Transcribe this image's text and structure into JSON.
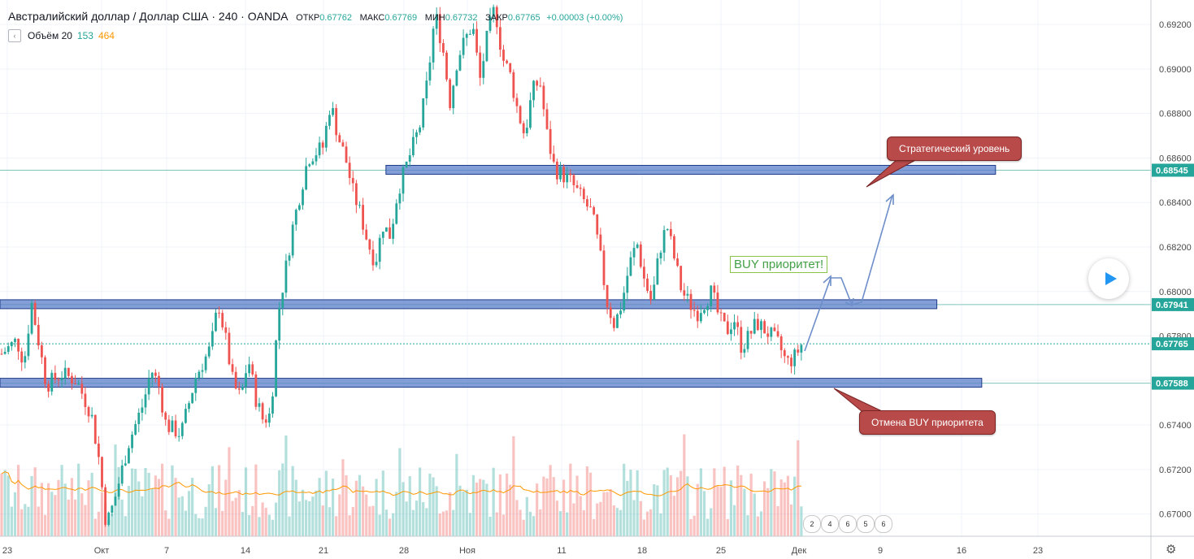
{
  "header": {
    "symbol": "Австралийский доллар / Доллар США · 240 · OANDA",
    "open_label": "ОТКР",
    "open": "0.67762",
    "high_label": "МАКС",
    "high": "0.67769",
    "low_label": "МИН",
    "low": "0.67732",
    "close_label": "ЗАКР",
    "close": "0.67765",
    "change": "+0.00003 (+0.00%)"
  },
  "volume_legend": {
    "label": "Объём 20",
    "value1": "153",
    "value2": "464"
  },
  "annotations": {
    "strategic_level": "Стратегический уровень",
    "cancel_buy": "Отмена BUY приоритета",
    "buy_priority": "BUY приоритет!"
  },
  "events": [
    "2",
    "4",
    "6",
    "5",
    "6"
  ],
  "colors": {
    "up": "#26a69a",
    "down": "#ef5350",
    "zone": "#5b7fc9",
    "callout": "#b84a4a",
    "ma": "#ff9800"
  },
  "chart_data": {
    "type": "candlestick",
    "instrument": "Австралийский доллар / Доллар США",
    "ylim": [
      0.669,
      0.6931
    ],
    "y_ticks": [
      "0.67000",
      "0.67200",
      "0.67400",
      "0.67600",
      "0.67800",
      "0.68000",
      "0.68200",
      "0.68400",
      "0.68600",
      "0.68800",
      "0.69000",
      "0.69200"
    ],
    "x_ticks": [
      "23",
      "Окт",
      "7",
      "14",
      "21",
      "28",
      "Ноя",
      "11",
      "18",
      "25",
      "Дек",
      "9",
      "16",
      "23"
    ],
    "price_labels": [
      {
        "value": "0.68545",
        "color": "#26a69a"
      },
      {
        "value": "0.67941",
        "color": "#26a69a"
      },
      {
        "value": "0.67765",
        "color": "#26a69a"
      },
      {
        "value": "0.67588",
        "color": "#26a69a"
      }
    ],
    "levels": [
      {
        "name": "strategic",
        "price": 0.68545,
        "from": 0.252,
        "to": 0.865
      },
      {
        "name": "mid",
        "price": 0.67941,
        "from": 0.0,
        "to": 0.814
      },
      {
        "name": "support",
        "price": 0.67588,
        "from": 0.0,
        "to": 0.853
      }
    ],
    "close_path": [
      [
        0,
        0.6772
      ],
      [
        2,
        0.6778
      ],
      [
        3,
        0.6768
      ],
      [
        4,
        0.6795
      ],
      [
        6,
        0.6758
      ],
      [
        8,
        0.6763
      ],
      [
        10,
        0.676
      ],
      [
        12,
        0.6745
      ],
      [
        13,
        0.6725
      ],
      [
        14,
        0.6695
      ],
      [
        15,
        0.6705
      ],
      [
        17,
        0.6732
      ],
      [
        19,
        0.675
      ],
      [
        20,
        0.6765
      ],
      [
        21,
        0.6758
      ],
      [
        22,
        0.674
      ],
      [
        24,
        0.6736
      ],
      [
        26,
        0.6762
      ],
      [
        28,
        0.6775
      ],
      [
        29,
        0.6795
      ],
      [
        30,
        0.6778
      ],
      [
        31,
        0.6758
      ],
      [
        32,
        0.6752
      ],
      [
        33,
        0.677
      ],
      [
        34,
        0.6752
      ],
      [
        35,
        0.6742
      ],
      [
        36,
        0.6745
      ],
      [
        37,
        0.679
      ],
      [
        39,
        0.683
      ],
      [
        41,
        0.686
      ],
      [
        43,
        0.6865
      ],
      [
        44,
        0.6885
      ],
      [
        45,
        0.687
      ],
      [
        46,
        0.686
      ],
      [
        47,
        0.6845
      ],
      [
        48,
        0.6835
      ],
      [
        49,
        0.6822
      ],
      [
        50,
        0.6813
      ],
      [
        51,
        0.683
      ],
      [
        52,
        0.6825
      ],
      [
        53,
        0.6845
      ],
      [
        55,
        0.6865
      ],
      [
        56,
        0.6875
      ],
      [
        57,
        0.6895
      ],
      [
        58,
        0.6925
      ],
      [
        59,
        0.691
      ],
      [
        60,
        0.6885
      ],
      [
        61,
        0.6905
      ],
      [
        62,
        0.6913
      ],
      [
        63,
        0.692
      ],
      [
        64,
        0.6895
      ],
      [
        65,
        0.6915
      ],
      [
        66,
        0.6928
      ],
      [
        67,
        0.6905
      ],
      [
        68,
        0.6898
      ],
      [
        69,
        0.6882
      ],
      [
        70,
        0.687
      ],
      [
        71,
        0.689
      ],
      [
        72,
        0.6895
      ],
      [
        73,
        0.687
      ],
      [
        74,
        0.6855
      ],
      [
        76,
        0.685
      ],
      [
        77,
        0.6845
      ],
      [
        78,
        0.684
      ],
      [
        79,
        0.6835
      ],
      [
        80,
        0.6818
      ],
      [
        81,
        0.6795
      ],
      [
        82,
        0.6785
      ],
      [
        83,
        0.6795
      ],
      [
        84,
        0.6812
      ],
      [
        85,
        0.6822
      ],
      [
        86,
        0.6805
      ],
      [
        87,
        0.6795
      ],
      [
        88,
        0.6818
      ],
      [
        89,
        0.683
      ],
      [
        90,
        0.6815
      ],
      [
        91,
        0.68
      ],
      [
        92,
        0.6795
      ],
      [
        93,
        0.679
      ],
      [
        94,
        0.6795
      ],
      [
        95,
        0.68
      ],
      [
        96,
        0.6788
      ],
      [
        97,
        0.6782
      ],
      [
        98,
        0.6788
      ],
      [
        99,
        0.6775
      ],
      [
        100,
        0.678
      ],
      [
        101,
        0.6786
      ],
      [
        102,
        0.6783
      ],
      [
        103,
        0.678
      ],
      [
        104,
        0.6776
      ],
      [
        105,
        0.6768
      ],
      [
        106,
        0.677
      ],
      [
        107,
        0.6776
      ]
    ],
    "volume_ma_label": "Объём 20"
  }
}
